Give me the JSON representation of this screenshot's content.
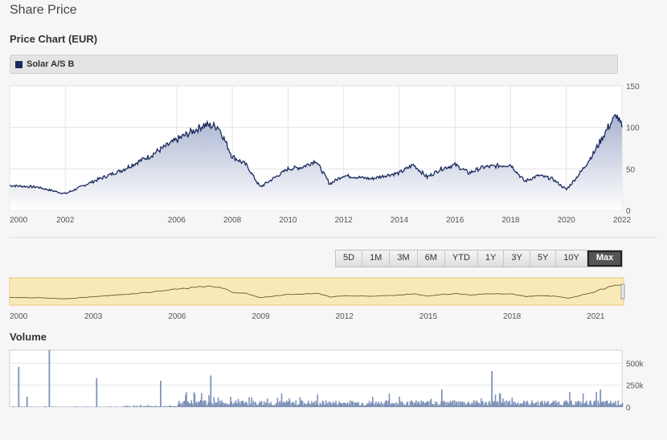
{
  "page": {
    "heading": "Share Price"
  },
  "price_chart": {
    "title": "Price Chart (EUR)",
    "legend_label": "Solar A/S B"
  },
  "range_buttons": [
    "5D",
    "1M",
    "3M",
    "6M",
    "YTD",
    "1Y",
    "3Y",
    "5Y",
    "10Y",
    "Max"
  ],
  "active_range": "Max",
  "volume_chart": {
    "title": "Volume"
  },
  "colors": {
    "line": "#1a2a5e",
    "area_top": "#a9b3cf",
    "area_bottom": "#ffffff",
    "navigator_bg": "#fae9b8",
    "volume_bar": "#7f93b8"
  },
  "chart_data": [
    {
      "type": "area",
      "series": [
        {
          "name": "Solar A/S B",
          "x": [
            "2000",
            "2001",
            "2002",
            "2003",
            "2004",
            "2005",
            "2006",
            "2007",
            "2007.5",
            "2008",
            "2008.5",
            "2009",
            "2010",
            "2010.5",
            "2011",
            "2011.5",
            "2012",
            "2012.5",
            "2013",
            "2013.5",
            "2014",
            "2014.5",
            "2015",
            "2015.5",
            "2016",
            "2016.5",
            "2017",
            "2018",
            "2018.5",
            "2019",
            "2019.5",
            "2020",
            "2020.5",
            "2021",
            "2021.5",
            "2021.8",
            "2022"
          ],
          "values": [
            30,
            28,
            20,
            35,
            48,
            65,
            85,
            103,
            101,
            65,
            55,
            28,
            50,
            52,
            60,
            32,
            42,
            40,
            38,
            42,
            45,
            55,
            40,
            50,
            55,
            45,
            52,
            55,
            35,
            42,
            38,
            25,
            45,
            70,
            100,
            115,
            100
          ]
        }
      ],
      "x_ticks": [
        "2000",
        "2002",
        "2006",
        "2008",
        "2010",
        "2012",
        "2014",
        "2016",
        "2018",
        "2020",
        "2022"
      ],
      "y_ticks": [
        "0",
        "50",
        "100",
        "150"
      ],
      "ylim": [
        0,
        150
      ]
    },
    {
      "type": "line",
      "x_ticks": [
        "2000",
        "2003",
        "2006",
        "2009",
        "2012",
        "2015",
        "2018",
        "2021"
      ]
    },
    {
      "type": "bar",
      "y_ticks": [
        "0",
        "250k",
        "500k"
      ],
      "ylim": [
        0,
        650000
      ],
      "spikes": [
        {
          "x": "2000.3",
          "value": 460000
        },
        {
          "x": "2000.6",
          "value": 120000
        },
        {
          "x": "2001.4",
          "value": 650000
        },
        {
          "x": "2003.1",
          "value": 330000
        },
        {
          "x": "2005.4",
          "value": 300000
        },
        {
          "x": "2007.2",
          "value": 360000
        },
        {
          "x": "2015.5",
          "value": 200000
        },
        {
          "x": "2017.3",
          "value": 410000
        },
        {
          "x": "2021.2",
          "value": 200000
        }
      ]
    }
  ]
}
